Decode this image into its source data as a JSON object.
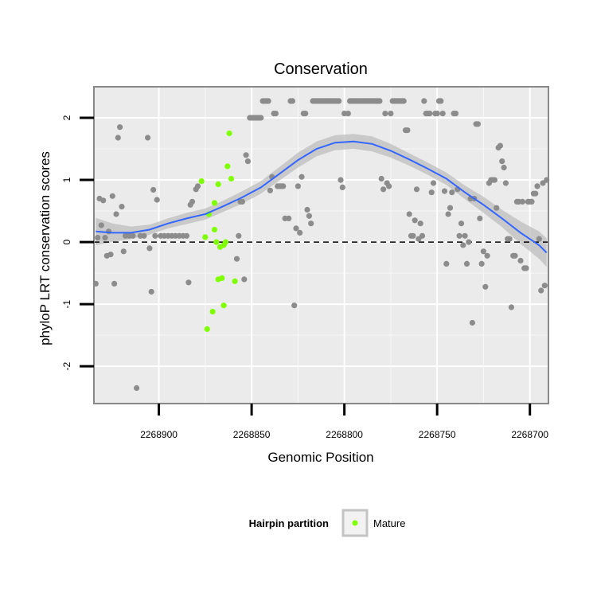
{
  "chart_data": {
    "type": "scatter",
    "title": "Conservation",
    "xlabel": "Genomic Position",
    "ylabel": "phyloP LRT conservation scores",
    "x_reversed": true,
    "xlim": [
      2268935,
      2268690
    ],
    "ylim": [
      -2.6,
      2.5
    ],
    "x_ticks": [
      2268900,
      2268850,
      2268800,
      2268750,
      2268700
    ],
    "x_tick_labels": [
      "2268900",
      "2268850",
      "2268800",
      "2268750",
      "2268700"
    ],
    "y_ticks": [
      -2,
      -1,
      0,
      1,
      2
    ],
    "y_tick_labels": [
      "-2",
      "-1",
      "0",
      "1",
      "2"
    ],
    "grid": true,
    "reference_line": {
      "y": 0,
      "style": "dashed",
      "color": "#000000"
    },
    "legend": {
      "title": "Hairpin partition",
      "placement": "bottom",
      "entries": [
        "Mature"
      ]
    },
    "colors": {
      "background": "#ebebeb",
      "grid": "#ffffff",
      "points": "#8c8c8c",
      "mature": "#7fff00",
      "smooth": "#3366ff",
      "ribbon": "#bdbdbd"
    },
    "series": [
      {
        "name": "Mature",
        "color": "#7fff00",
        "points": [
          [
            2268877,
            0.98
          ],
          [
            2268875,
            0.08
          ],
          [
            2268874,
            -1.4
          ],
          [
            2268873,
            0.45
          ],
          [
            2268871,
            -1.12
          ],
          [
            2268870,
            0.2
          ],
          [
            2268870,
            0.63
          ],
          [
            2268869,
            0.0
          ],
          [
            2268868,
            0.93
          ],
          [
            2268868,
            -0.6
          ],
          [
            2268867,
            -0.08
          ],
          [
            2268866,
            -0.58
          ],
          [
            2268865,
            -1.02
          ],
          [
            2268865,
            -0.05
          ],
          [
            2268864,
            0.0
          ],
          [
            2268863,
            1.22
          ],
          [
            2268862,
            1.75
          ],
          [
            2268861,
            1.02
          ],
          [
            2268859,
            -0.63
          ]
        ]
      },
      {
        "color": "#8c8c8c",
        "points": [
          [
            2268934,
            -0.67
          ],
          [
            2268933,
            0.07
          ],
          [
            2268932,
            0.7
          ],
          [
            2268931,
            0.27
          ],
          [
            2268930,
            0.67
          ],
          [
            2268929,
            0.07
          ],
          [
            2268928,
            -0.22
          ],
          [
            2268927,
            0.17
          ],
          [
            2268926,
            -0.2
          ],
          [
            2268925,
            0.74
          ],
          [
            2268924,
            -0.67
          ],
          [
            2268923,
            0.45
          ],
          [
            2268922,
            1.68
          ],
          [
            2268921,
            1.85
          ],
          [
            2268920,
            0.57
          ],
          [
            2268919,
            -0.15
          ],
          [
            2268918,
            0.1
          ],
          [
            2268916,
            0.1
          ],
          [
            2268914,
            0.1
          ],
          [
            2268912,
            -2.35
          ],
          [
            2268910,
            0.1
          ],
          [
            2268908,
            0.1
          ],
          [
            2268906,
            1.68
          ],
          [
            2268905,
            -0.1
          ],
          [
            2268904,
            -0.8
          ],
          [
            2268903,
            0.84
          ],
          [
            2268902,
            0.1
          ],
          [
            2268901,
            0.68
          ],
          [
            2268899,
            0.1
          ],
          [
            2268897,
            0.1
          ],
          [
            2268895,
            0.1
          ],
          [
            2268893,
            0.1
          ],
          [
            2268891,
            0.1
          ],
          [
            2268889,
            0.1
          ],
          [
            2268887,
            0.1
          ],
          [
            2268885,
            0.1
          ],
          [
            2268884,
            -0.65
          ],
          [
            2268883,
            0.6
          ],
          [
            2268882,
            0.65
          ],
          [
            2268880,
            0.85
          ],
          [
            2268879,
            0.9
          ],
          [
            2268858,
            -0.27
          ],
          [
            2268857,
            0.1
          ],
          [
            2268856,
            0.65
          ],
          [
            2268855,
            0.65
          ],
          [
            2268854,
            -0.6
          ],
          [
            2268853,
            1.4
          ],
          [
            2268852,
            1.3
          ],
          [
            2268851,
            2.0
          ],
          [
            2268850,
            2.0
          ],
          [
            2268849,
            2.0
          ],
          [
            2268848,
            2.0
          ],
          [
            2268847,
            2.0
          ],
          [
            2268846,
            2.0
          ],
          [
            2268845,
            2.0
          ],
          [
            2268844,
            2.27
          ],
          [
            2268843,
            2.27
          ],
          [
            2268842,
            2.27
          ],
          [
            2268841,
            2.27
          ],
          [
            2268840,
            0.83
          ],
          [
            2268839,
            1.05
          ],
          [
            2268838,
            2.07
          ],
          [
            2268837,
            2.07
          ],
          [
            2268836,
            0.9
          ],
          [
            2268835,
            0.9
          ],
          [
            2268834,
            0.9
          ],
          [
            2268833,
            0.9
          ],
          [
            2268832,
            0.38
          ],
          [
            2268830,
            0.38
          ],
          [
            2268829,
            2.27
          ],
          [
            2268828,
            2.27
          ],
          [
            2268827,
            -1.02
          ],
          [
            2268826,
            0.22
          ],
          [
            2268825,
            0.9
          ],
          [
            2268824,
            0.15
          ],
          [
            2268823,
            1.05
          ],
          [
            2268822,
            2.07
          ],
          [
            2268821,
            2.07
          ],
          [
            2268820,
            0.52
          ],
          [
            2268819,
            0.42
          ],
          [
            2268818,
            0.3
          ],
          [
            2268817,
            2.27
          ],
          [
            2268816,
            2.27
          ],
          [
            2268815,
            2.27
          ],
          [
            2268814,
            2.27
          ],
          [
            2268813,
            2.27
          ],
          [
            2268812,
            2.27
          ],
          [
            2268811,
            2.27
          ],
          [
            2268810,
            2.27
          ],
          [
            2268809,
            2.27
          ],
          [
            2268808,
            2.27
          ],
          [
            2268807,
            2.27
          ],
          [
            2268806,
            2.27
          ],
          [
            2268805,
            2.27
          ],
          [
            2268804,
            2.27
          ],
          [
            2268803,
            2.27
          ],
          [
            2268802,
            1.0
          ],
          [
            2268801,
            0.88
          ],
          [
            2268800,
            2.07
          ],
          [
            2268798,
            2.07
          ],
          [
            2268797,
            2.27
          ],
          [
            2268796,
            2.27
          ],
          [
            2268795,
            2.27
          ],
          [
            2268794,
            2.27
          ],
          [
            2268793,
            2.27
          ],
          [
            2268792,
            2.27
          ],
          [
            2268791,
            2.27
          ],
          [
            2268790,
            2.27
          ],
          [
            2268789,
            2.27
          ],
          [
            2268788,
            2.27
          ],
          [
            2268787,
            2.27
          ],
          [
            2268786,
            2.27
          ],
          [
            2268785,
            2.27
          ],
          [
            2268784,
            2.27
          ],
          [
            2268783,
            2.27
          ],
          [
            2268782,
            2.27
          ],
          [
            2268781,
            2.27
          ],
          [
            2268780,
            1.02
          ],
          [
            2268779,
            0.85
          ],
          [
            2268778,
            2.07
          ],
          [
            2268777,
            0.95
          ],
          [
            2268776,
            0.9
          ],
          [
            2268775,
            2.07
          ],
          [
            2268774,
            2.27
          ],
          [
            2268773,
            2.27
          ],
          [
            2268772,
            2.27
          ],
          [
            2268771,
            2.27
          ],
          [
            2268770,
            2.27
          ],
          [
            2268769,
            2.27
          ],
          [
            2268768,
            2.27
          ],
          [
            2268767,
            1.8
          ],
          [
            2268766,
            1.8
          ],
          [
            2268765,
            0.45
          ],
          [
            2268764,
            0.1
          ],
          [
            2268763,
            0.1
          ],
          [
            2268762,
            0.35
          ],
          [
            2268761,
            0.85
          ],
          [
            2268760,
            0.05
          ],
          [
            2268759,
            0.3
          ],
          [
            2268758,
            0.1
          ],
          [
            2268757,
            2.27
          ],
          [
            2268756,
            2.07
          ],
          [
            2268755,
            2.07
          ],
          [
            2268754,
            2.07
          ],
          [
            2268753,
            0.8
          ],
          [
            2268752,
            0.95
          ],
          [
            2268751,
            2.07
          ],
          [
            2268750,
            2.07
          ],
          [
            2268749,
            2.27
          ],
          [
            2268748,
            2.27
          ],
          [
            2268747,
            2.07
          ],
          [
            2268746,
            0.82
          ],
          [
            2268745,
            -0.35
          ],
          [
            2268744,
            0.45
          ],
          [
            2268743,
            0.55
          ],
          [
            2268742,
            0.8
          ],
          [
            2268741,
            2.07
          ],
          [
            2268740,
            2.07
          ],
          [
            2268739,
            0.85
          ],
          [
            2268738,
            0.1
          ],
          [
            2268737,
            0.3
          ],
          [
            2268736,
            -0.05
          ],
          [
            2268735,
            0.1
          ],
          [
            2268734,
            -0.35
          ],
          [
            2268733,
            0.0
          ],
          [
            2268732,
            0.7
          ],
          [
            2268731,
            -1.3
          ],
          [
            2268730,
            0.7
          ],
          [
            2268729,
            1.9
          ],
          [
            2268728,
            1.9
          ],
          [
            2268727,
            0.38
          ],
          [
            2268726,
            -0.35
          ],
          [
            2268725,
            -0.15
          ],
          [
            2268724,
            -0.72
          ],
          [
            2268723,
            -0.22
          ],
          [
            2268722,
            0.95
          ],
          [
            2268721,
            1.0
          ],
          [
            2268720,
            1.0
          ],
          [
            2268719,
            1.0
          ],
          [
            2268718,
            0.55
          ],
          [
            2268717,
            1.52
          ],
          [
            2268716,
            1.55
          ],
          [
            2268715,
            1.3
          ],
          [
            2268714,
            1.2
          ],
          [
            2268713,
            0.95
          ],
          [
            2268712,
            0.05
          ],
          [
            2268711,
            0.05
          ],
          [
            2268710,
            -1.05
          ],
          [
            2268709,
            -0.22
          ],
          [
            2268708,
            -0.22
          ],
          [
            2268707,
            0.65
          ],
          [
            2268706,
            0.65
          ],
          [
            2268705,
            -0.3
          ],
          [
            2268704,
            0.65
          ],
          [
            2268703,
            -0.42
          ],
          [
            2268702,
            -0.42
          ],
          [
            2268701,
            0.65
          ],
          [
            2268700,
            0.65
          ],
          [
            2268699,
            0.65
          ],
          [
            2268698,
            0.78
          ],
          [
            2268697,
            0.78
          ],
          [
            2268696,
            0.9
          ],
          [
            2268695,
            0.05
          ],
          [
            2268694,
            -0.78
          ],
          [
            2268693,
            0.95
          ],
          [
            2268692,
            -0.7
          ],
          [
            2268691,
            1.0
          ]
        ]
      }
    ],
    "smooth": {
      "x": [
        2268934,
        2268925,
        2268915,
        2268905,
        2268895,
        2268885,
        2268875,
        2268865,
        2268855,
        2268845,
        2268835,
        2268825,
        2268815,
        2268805,
        2268795,
        2268785,
        2268775,
        2268765,
        2268755,
        2268745,
        2268735,
        2268725,
        2268715,
        2268705,
        2268695,
        2268691
      ],
      "y": [
        0.17,
        0.15,
        0.15,
        0.2,
        0.3,
        0.38,
        0.45,
        0.58,
        0.72,
        0.88,
        1.1,
        1.32,
        1.5,
        1.6,
        1.62,
        1.58,
        1.47,
        1.33,
        1.18,
        1.02,
        0.8,
        0.6,
        0.38,
        0.15,
        -0.05,
        -0.17
      ],
      "lower": [
        -0.05,
        0.0,
        0.05,
        0.12,
        0.22,
        0.29,
        0.36,
        0.49,
        0.62,
        0.78,
        0.99,
        1.2,
        1.38,
        1.48,
        1.5,
        1.46,
        1.36,
        1.23,
        1.08,
        0.92,
        0.69,
        0.47,
        0.24,
        -0.03,
        -0.27,
        -0.4
      ],
      "upper": [
        0.39,
        0.3,
        0.25,
        0.28,
        0.38,
        0.47,
        0.54,
        0.67,
        0.82,
        0.98,
        1.21,
        1.44,
        1.62,
        1.72,
        1.74,
        1.7,
        1.58,
        1.43,
        1.28,
        1.12,
        0.91,
        0.73,
        0.52,
        0.33,
        0.17,
        0.06
      ]
    }
  }
}
